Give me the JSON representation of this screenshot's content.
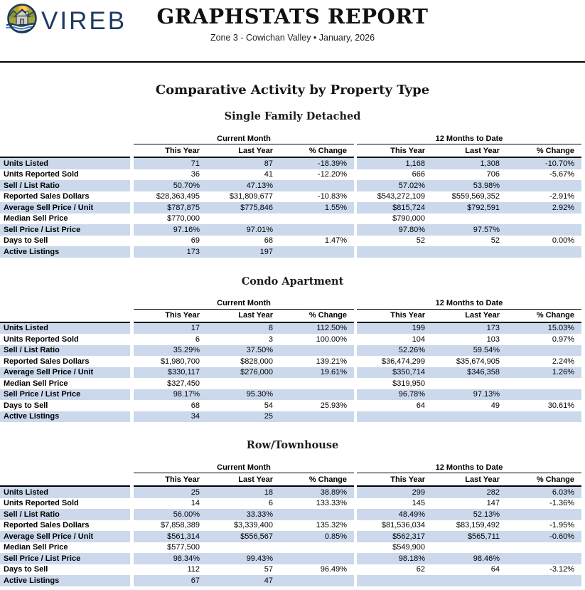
{
  "header": {
    "brand": "VIREB",
    "title": "GRAPHSTATS REPORT",
    "subtitle": "Zone 3 - Cowichan Valley • January, 2026"
  },
  "icons": {
    "logo": "vireb-house-sun-waves-logo"
  },
  "colors": {
    "row_shade": "#ccd9ec",
    "brand_navy": "#1c3a64",
    "logo_olive": "#9fa233",
    "logo_sun": "#f6b026",
    "logo_wave_blue": "#4f7fb0",
    "rule_black": "#000000"
  },
  "page_title": "Comparative Activity by Property Type",
  "columns": {
    "group_current": "Current Month",
    "group_ytd": "12 Months to Date",
    "this_year": "This Year",
    "last_year": "Last Year",
    "pct_change": "% Change"
  },
  "tables": [
    {
      "title": "Single Family Detached",
      "rows": [
        {
          "label": "Units Listed",
          "cm_this": "71",
          "cm_last": "87",
          "cm_chg": "-18.39%",
          "ytd_this": "1,168",
          "ytd_last": "1,308",
          "ytd_chg": "-10.70%"
        },
        {
          "label": "Units Reported Sold",
          "cm_this": "36",
          "cm_last": "41",
          "cm_chg": "-12.20%",
          "ytd_this": "666",
          "ytd_last": "706",
          "ytd_chg": "-5.67%"
        },
        {
          "label": "Sell / List Ratio",
          "cm_this": "50.70%",
          "cm_last": "47.13%",
          "cm_chg": "",
          "ytd_this": "57.02%",
          "ytd_last": "53.98%",
          "ytd_chg": ""
        },
        {
          "label": "Reported Sales Dollars",
          "cm_this": "$28,363,495",
          "cm_last": "$31,809,677",
          "cm_chg": "-10.83%",
          "ytd_this": "$543,272,109",
          "ytd_last": "$559,569,352",
          "ytd_chg": "-2.91%"
        },
        {
          "label": "Average Sell Price / Unit",
          "cm_this": "$787,875",
          "cm_last": "$775,846",
          "cm_chg": "1.55%",
          "ytd_this": "$815,724",
          "ytd_last": "$792,591",
          "ytd_chg": "2.92%"
        },
        {
          "label": "Median Sell Price",
          "cm_this": "$770,000",
          "cm_last": "",
          "cm_chg": "",
          "ytd_this": "$790,000",
          "ytd_last": "",
          "ytd_chg": ""
        },
        {
          "label": "Sell Price / List Price",
          "cm_this": "97.16%",
          "cm_last": "97.01%",
          "cm_chg": "",
          "ytd_this": "97.80%",
          "ytd_last": "97.57%",
          "ytd_chg": ""
        },
        {
          "label": "Days to Sell",
          "cm_this": "69",
          "cm_last": "68",
          "cm_chg": "1.47%",
          "ytd_this": "52",
          "ytd_last": "52",
          "ytd_chg": "0.00%"
        },
        {
          "label": "Active Listings",
          "cm_this": "173",
          "cm_last": "197",
          "cm_chg": "",
          "ytd_this": "",
          "ytd_last": "",
          "ytd_chg": ""
        }
      ]
    },
    {
      "title": "Condo Apartment",
      "rows": [
        {
          "label": "Units Listed",
          "cm_this": "17",
          "cm_last": "8",
          "cm_chg": "112.50%",
          "ytd_this": "199",
          "ytd_last": "173",
          "ytd_chg": "15.03%"
        },
        {
          "label": "Units Reported Sold",
          "cm_this": "6",
          "cm_last": "3",
          "cm_chg": "100.00%",
          "ytd_this": "104",
          "ytd_last": "103",
          "ytd_chg": "0.97%"
        },
        {
          "label": "Sell / List Ratio",
          "cm_this": "35.29%",
          "cm_last": "37.50%",
          "cm_chg": "",
          "ytd_this": "52.26%",
          "ytd_last": "59.54%",
          "ytd_chg": ""
        },
        {
          "label": "Reported Sales Dollars",
          "cm_this": "$1,980,700",
          "cm_last": "$828,000",
          "cm_chg": "139.21%",
          "ytd_this": "$36,474,299",
          "ytd_last": "$35,674,905",
          "ytd_chg": "2.24%"
        },
        {
          "label": "Average Sell Price / Unit",
          "cm_this": "$330,117",
          "cm_last": "$276,000",
          "cm_chg": "19.61%",
          "ytd_this": "$350,714",
          "ytd_last": "$346,358",
          "ytd_chg": "1.26%"
        },
        {
          "label": "Median Sell Price",
          "cm_this": "$327,450",
          "cm_last": "",
          "cm_chg": "",
          "ytd_this": "$319,950",
          "ytd_last": "",
          "ytd_chg": ""
        },
        {
          "label": "Sell Price / List Price",
          "cm_this": "98.17%",
          "cm_last": "95.30%",
          "cm_chg": "",
          "ytd_this": "96.78%",
          "ytd_last": "97.13%",
          "ytd_chg": ""
        },
        {
          "label": "Days to Sell",
          "cm_this": "68",
          "cm_last": "54",
          "cm_chg": "25.93%",
          "ytd_this": "64",
          "ytd_last": "49",
          "ytd_chg": "30.61%"
        },
        {
          "label": "Active Listings",
          "cm_this": "34",
          "cm_last": "25",
          "cm_chg": "",
          "ytd_this": "",
          "ytd_last": "",
          "ytd_chg": ""
        }
      ]
    },
    {
      "title": "Row/Townhouse",
      "rows": [
        {
          "label": "Units Listed",
          "cm_this": "25",
          "cm_last": "18",
          "cm_chg": "38.89%",
          "ytd_this": "299",
          "ytd_last": "282",
          "ytd_chg": "6.03%"
        },
        {
          "label": "Units Reported Sold",
          "cm_this": "14",
          "cm_last": "6",
          "cm_chg": "133.33%",
          "ytd_this": "145",
          "ytd_last": "147",
          "ytd_chg": "-1.36%"
        },
        {
          "label": "Sell / List Ratio",
          "cm_this": "56.00%",
          "cm_last": "33.33%",
          "cm_chg": "",
          "ytd_this": "48.49%",
          "ytd_last": "52.13%",
          "ytd_chg": ""
        },
        {
          "label": "Reported Sales Dollars",
          "cm_this": "$7,858,389",
          "cm_last": "$3,339,400",
          "cm_chg": "135.32%",
          "ytd_this": "$81,536,034",
          "ytd_last": "$83,159,492",
          "ytd_chg": "-1.95%"
        },
        {
          "label": "Average Sell Price / Unit",
          "cm_this": "$561,314",
          "cm_last": "$556,567",
          "cm_chg": "0.85%",
          "ytd_this": "$562,317",
          "ytd_last": "$565,711",
          "ytd_chg": "-0.60%"
        },
        {
          "label": "Median Sell Price",
          "cm_this": "$577,500",
          "cm_last": "",
          "cm_chg": "",
          "ytd_this": "$549,900",
          "ytd_last": "",
          "ytd_chg": ""
        },
        {
          "label": "Sell Price / List Price",
          "cm_this": "98.34%",
          "cm_last": "99.43%",
          "cm_chg": "",
          "ytd_this": "98.18%",
          "ytd_last": "98.46%",
          "ytd_chg": ""
        },
        {
          "label": "Days to Sell",
          "cm_this": "112",
          "cm_last": "57",
          "cm_chg": "96.49%",
          "ytd_this": "62",
          "ytd_last": "64",
          "ytd_chg": "-3.12%"
        },
        {
          "label": "Active Listings",
          "cm_this": "67",
          "cm_last": "47",
          "cm_chg": "",
          "ytd_this": "",
          "ytd_last": "",
          "ytd_chg": ""
        }
      ]
    }
  ]
}
